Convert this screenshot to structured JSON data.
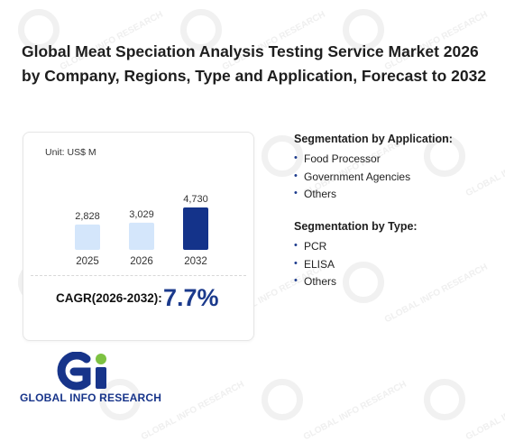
{
  "title": "Global Meat Speciation Analysis Testing Service Market 2026 by Company, Regions, Type and Application, Forecast to 2032",
  "watermark_text": "GLOBAL INFO RESEARCH",
  "chart_data": {
    "type": "bar",
    "unit_label": "Unit: US$ M",
    "categories": [
      "2025",
      "2026",
      "2032"
    ],
    "values": [
      2828,
      3029,
      4730
    ],
    "value_labels": [
      "2,828",
      "3,029",
      "4,730"
    ],
    "bar_colors": [
      "#d4e6fb",
      "#d4e6fb",
      "#14338a"
    ],
    "grid": false,
    "legend": "none"
  },
  "cagr": {
    "label": "CAGR(2026-2032):",
    "value": "7.7%"
  },
  "segments": {
    "application": {
      "title": "Segmentation by Application:",
      "items": [
        "Food Processor",
        "Government Agencies",
        "Others"
      ]
    },
    "type": {
      "title": "Segmentation by Type:",
      "items": [
        "PCR",
        "ELISA",
        "Others"
      ]
    }
  },
  "brand": {
    "name": "GLOBAL INFO RESEARCH",
    "logo_letters": "Gi",
    "colors": {
      "blue": "#17348a",
      "green": "#7dc242"
    }
  }
}
